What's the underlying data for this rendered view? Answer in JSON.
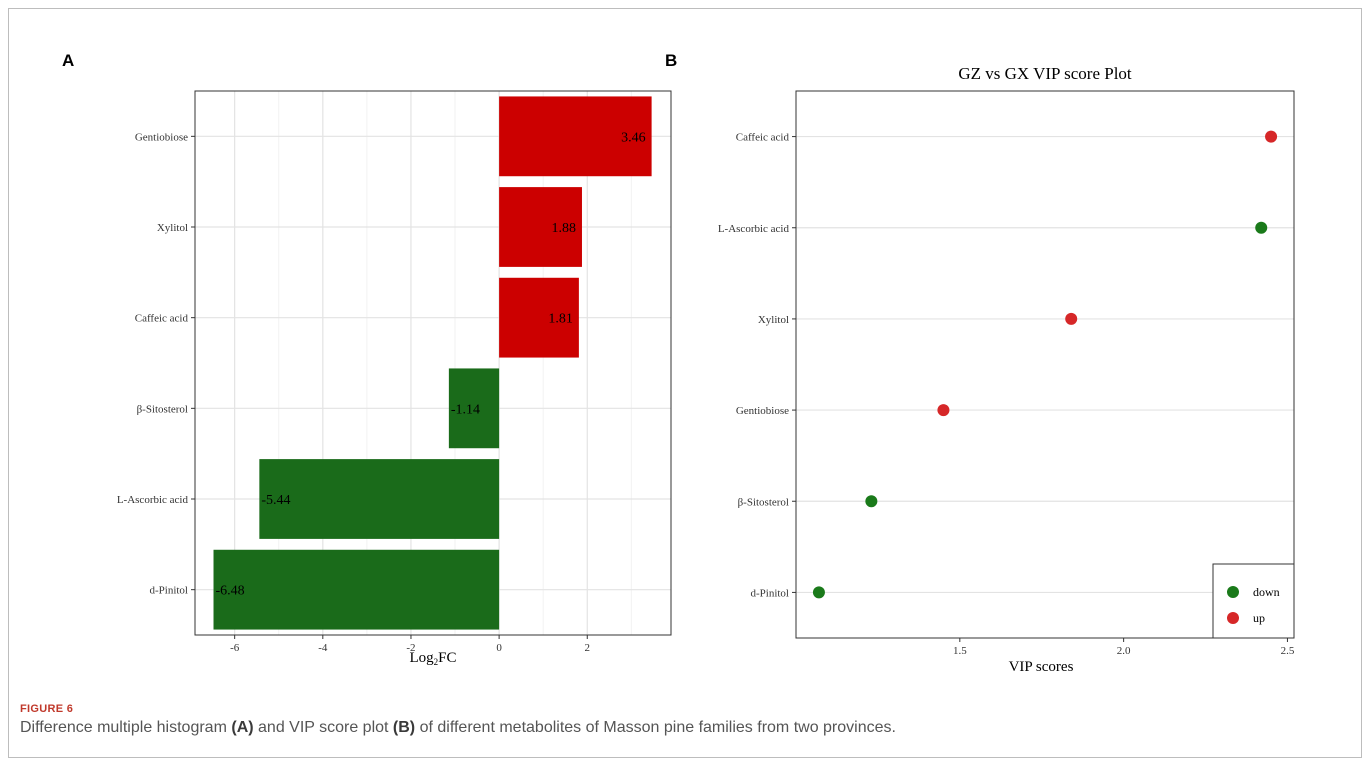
{
  "figure": {
    "label": "FIGURE 6",
    "caption_parts": [
      "Difference multiple histogram ",
      "(A)",
      " and VIP score plot ",
      "(B)",
      " of different metabolites of Masson pine families from two provinces."
    ]
  },
  "colors": {
    "up": "#cc0000",
    "down": "#1a6b1a",
    "point_up": "#d62728",
    "point_down": "#1a7a1a"
  },
  "chart_data": [
    {
      "panel": "A",
      "type": "bar",
      "orientation": "horizontal",
      "title": "",
      "xlabel_main": "Log",
      "xlabel_sub": "2",
      "xlabel_tail": "FC",
      "ylabel": "",
      "categories": [
        "Gentiobiose",
        "Xylitol",
        "Caffeic acid",
        "β-Sitosterol",
        "L-Ascorbic acid",
        "d-Pinitol"
      ],
      "values": [
        3.46,
        1.88,
        1.81,
        -1.14,
        -5.44,
        -6.48
      ],
      "value_labels": [
        "3.46",
        "1.88",
        "1.81",
        "-1.14",
        "-5.44",
        "-6.48"
      ],
      "groups": [
        "up",
        "up",
        "up",
        "down",
        "down",
        "down"
      ],
      "xlim": [
        -6.9,
        3.9
      ],
      "xticks": [
        -6,
        -4,
        -2,
        0,
        2
      ],
      "grid": true
    },
    {
      "panel": "B",
      "type": "scatter",
      "title": "GZ vs GX VIP score Plot",
      "xlabel": "VIP scores",
      "ylabel": "",
      "categories": [
        "Caffeic acid",
        "L-Ascorbic acid",
        "Xylitol",
        "Gentiobiose",
        "β-Sitosterol",
        "d-Pinitol"
      ],
      "values": [
        2.45,
        2.42,
        1.84,
        1.45,
        1.23,
        1.07
      ],
      "groups": [
        "up",
        "down",
        "up",
        "up",
        "down",
        "down"
      ],
      "xlim": [
        1.0,
        2.52
      ],
      "xticks": [
        1.5,
        2.0,
        2.5
      ],
      "xtick_labels": [
        "1.5",
        "2.0",
        "2.5"
      ],
      "legend": {
        "position": "bottom-right",
        "entries": [
          {
            "name": "down",
            "group": "down"
          },
          {
            "name": "up",
            "group": "up"
          }
        ]
      },
      "grid": true
    }
  ]
}
